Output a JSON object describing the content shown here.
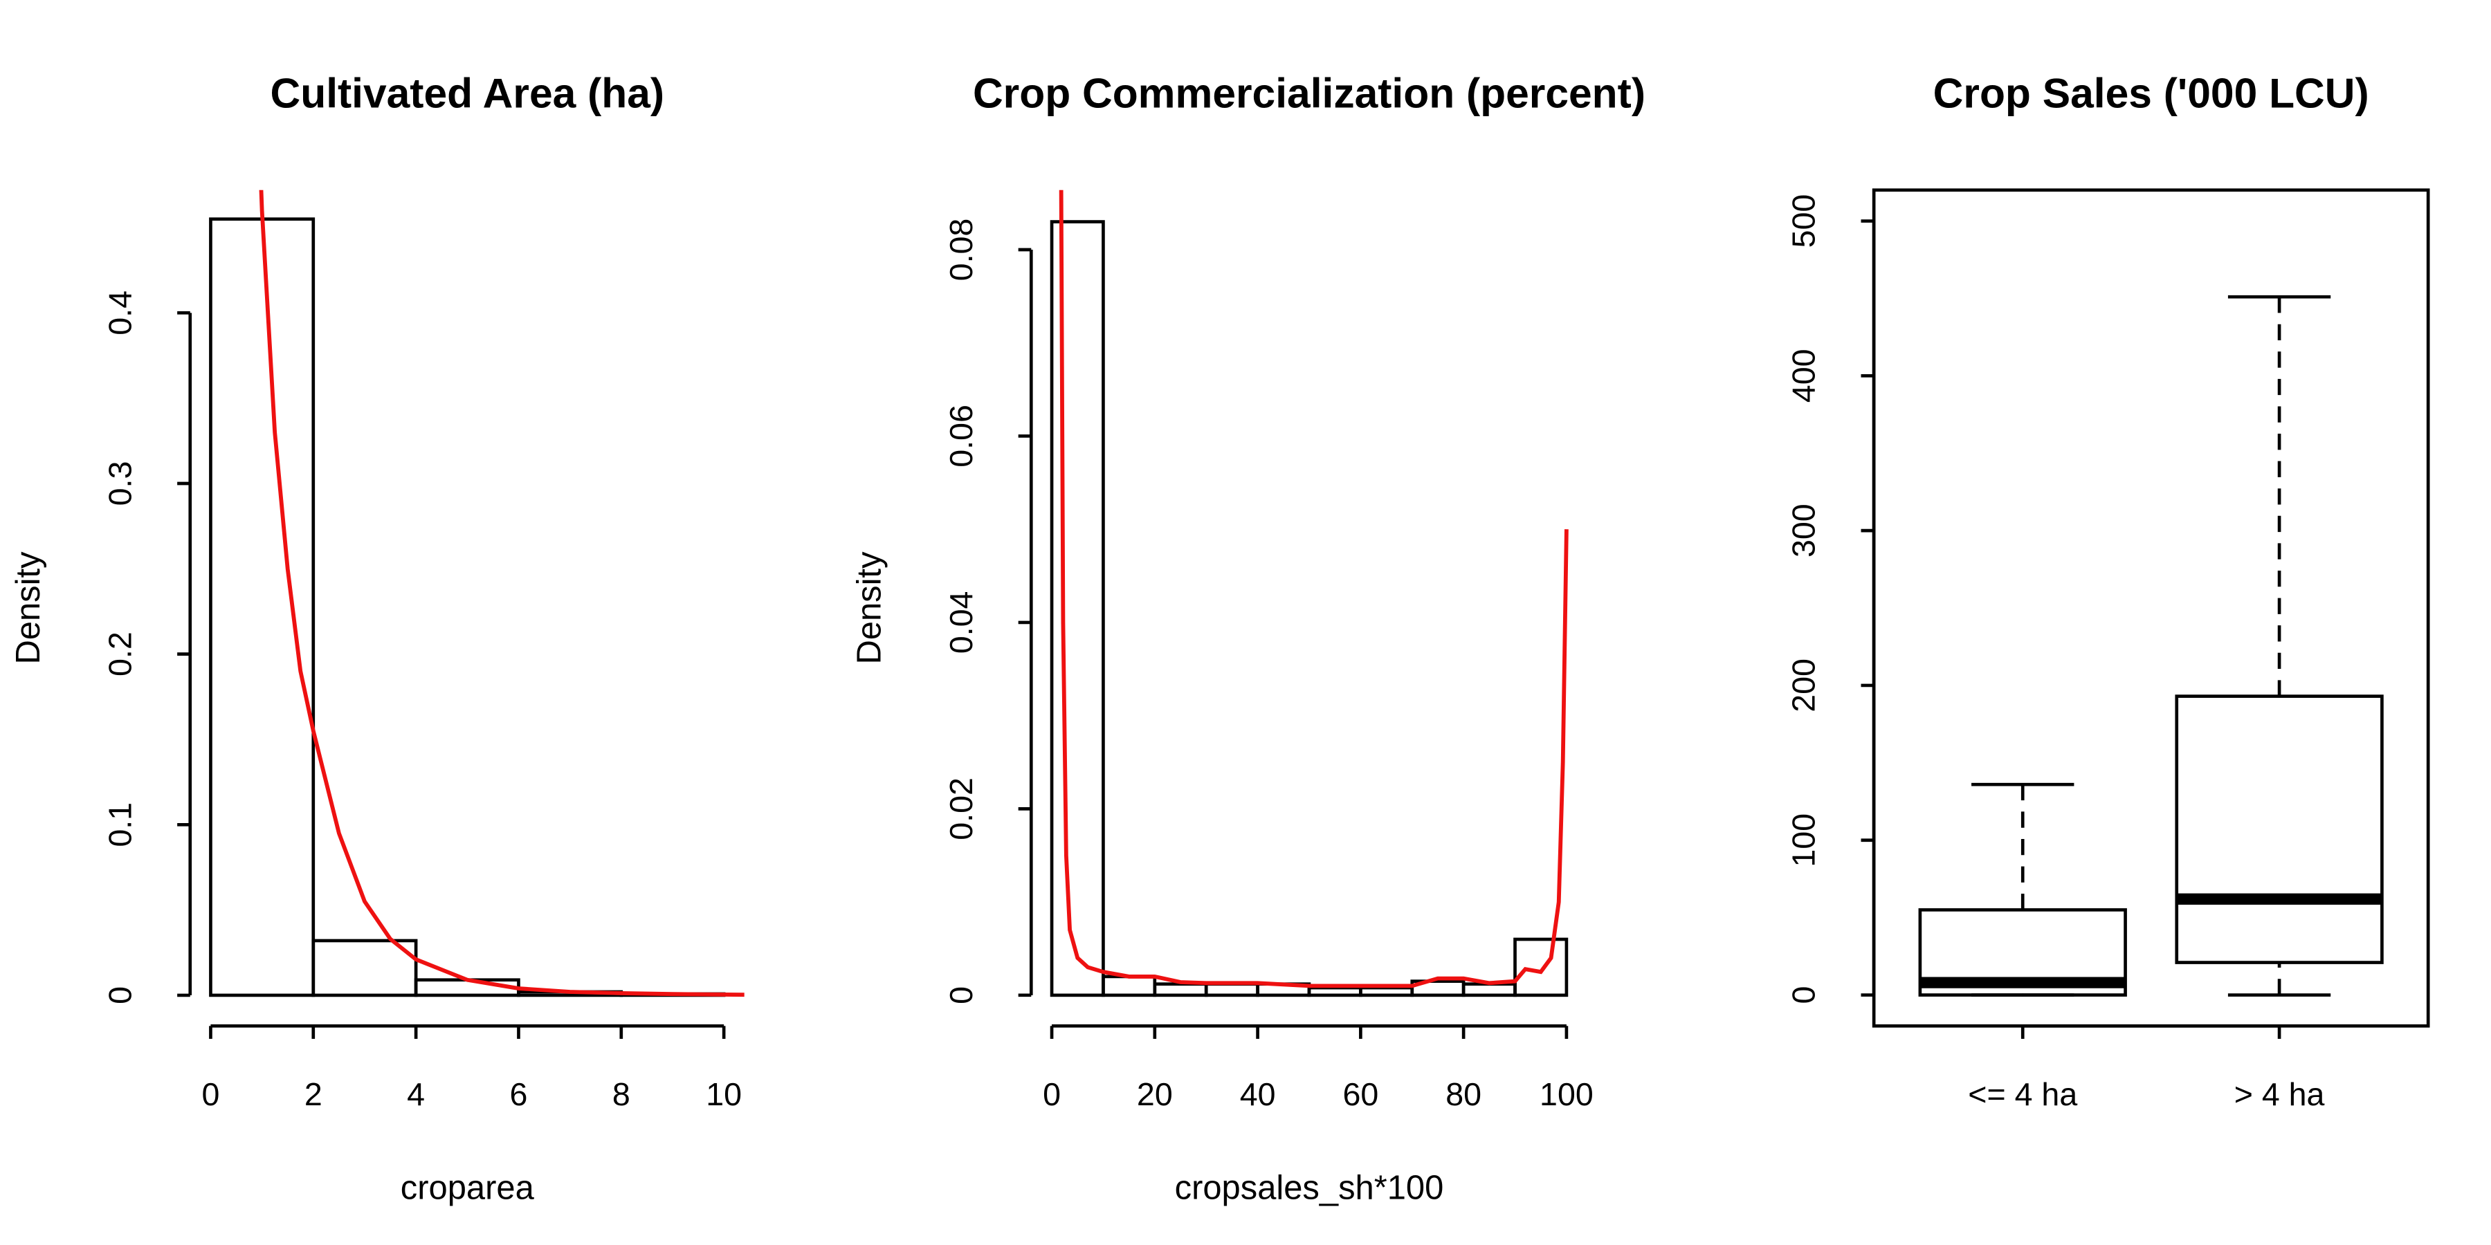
{
  "chart_data": [
    {
      "type": "histogram",
      "title": "Cultivated Area (ha)",
      "x_label": "croparea",
      "y_label": "Density",
      "bins": [
        0,
        2,
        4,
        6,
        8,
        10
      ],
      "values": [
        0.455,
        0.032,
        0.009,
        0.002,
        0.0008
      ],
      "xlim": [
        -0.4,
        10.4
      ],
      "xticks": [
        0,
        2,
        4,
        6,
        8,
        10
      ],
      "ylim": [
        -0.018,
        0.472
      ],
      "yticks": [
        0.0,
        0.1,
        0.2,
        0.3,
        0.4
      ],
      "curve": {
        "color": "#ee1111",
        "x": [
          0.95,
          1,
          1.25,
          1.5,
          1.75,
          2,
          2.5,
          3,
          3.5,
          4,
          5,
          6,
          7,
          8,
          9,
          10,
          10.4
        ],
        "values": [
          0.5,
          0.46,
          0.33,
          0.25,
          0.19,
          0.155,
          0.095,
          0.055,
          0.033,
          0.021,
          0.009,
          0.004,
          0.002,
          0.0012,
          0.0007,
          0.0004,
          0.0003
        ]
      }
    },
    {
      "type": "histogram",
      "title": "Crop Commercialization (percent)",
      "x_label": "cropsales_sh*100",
      "y_label": "Density",
      "bins": [
        0,
        10,
        20,
        30,
        40,
        50,
        60,
        70,
        80,
        90,
        100
      ],
      "values": [
        0.083,
        0.002,
        0.0012,
        0.0012,
        0.0012,
        0.0008,
        0.0008,
        0.0015,
        0.0012,
        0.006
      ],
      "xlim": [
        -4,
        104
      ],
      "xticks": [
        0,
        20,
        40,
        60,
        80,
        100
      ],
      "ylim": [
        -0.0033,
        0.0864
      ],
      "yticks": [
        0.0,
        0.02,
        0.04,
        0.06,
        0.08
      ],
      "curve": {
        "color": "#ee1111",
        "x": [
          1.8,
          2.2,
          2.8,
          3.5,
          5,
          7,
          10,
          15,
          20,
          25,
          30,
          40,
          50,
          60,
          70,
          75,
          80,
          85,
          90,
          92,
          95,
          97,
          98.5,
          99.3,
          100
        ],
        "values": [
          0.09,
          0.04,
          0.015,
          0.007,
          0.004,
          0.003,
          0.0025,
          0.002,
          0.002,
          0.0014,
          0.0013,
          0.0013,
          0.001,
          0.001,
          0.001,
          0.0018,
          0.0018,
          0.0013,
          0.0015,
          0.0028,
          0.0025,
          0.004,
          0.01,
          0.025,
          0.05
        ]
      }
    },
    {
      "type": "boxplot",
      "title": "Crop Sales ('000 LCU)",
      "categories": [
        "<= 4 ha",
        "> 4 ha"
      ],
      "boxes": [
        {
          "min": 0,
          "q1": 0,
          "median": 8,
          "q3": 55,
          "max": 136
        },
        {
          "min": 0,
          "q1": 21,
          "median": 62,
          "q3": 193,
          "max": 451
        }
      ],
      "ylim": [
        -20,
        520
      ],
      "yticks": [
        0,
        100,
        200,
        300,
        400,
        500
      ]
    }
  ]
}
